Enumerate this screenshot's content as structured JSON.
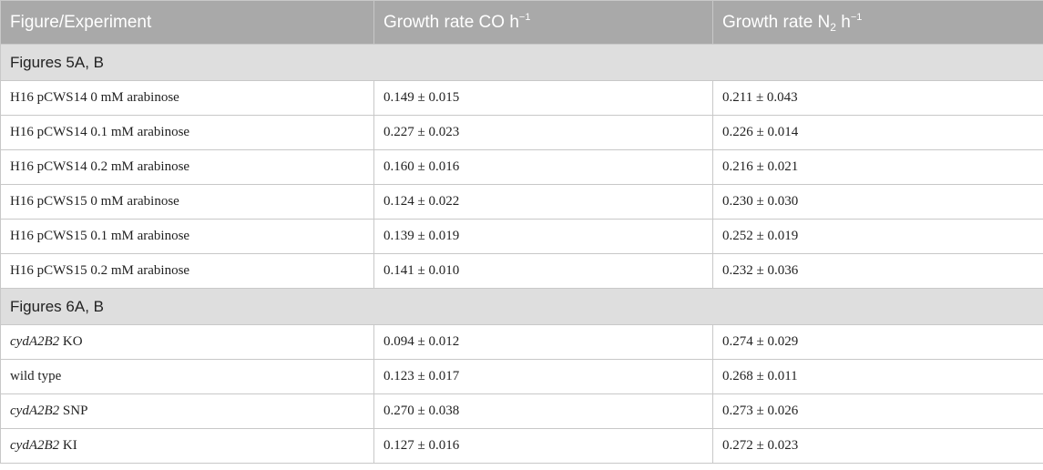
{
  "header": {
    "col1": "Figure/Experiment",
    "col2_prefix": "Growth rate CO h",
    "col2_sup": "−1",
    "col3_prefix": "Growth rate N",
    "col3_sub": "2",
    "col3_mid": " h",
    "col3_sup": "−1"
  },
  "sections": [
    {
      "title": "Figures 5A, B",
      "rows": [
        {
          "italic": "",
          "label": "H16 pCWS14 0 mM arabinose",
          "co": "0.149 ± 0.015",
          "n2": "0.211 ± 0.043"
        },
        {
          "italic": "",
          "label": "H16 pCWS14 0.1 mM arabinose",
          "co": "0.227 ± 0.023",
          "n2": "0.226 ± 0.014"
        },
        {
          "italic": "",
          "label": "H16 pCWS14 0.2 mM arabinose",
          "co": "0.160 ± 0.016",
          "n2": "0.216 ± 0.021"
        },
        {
          "italic": "",
          "label": "H16 pCWS15 0 mM arabinose",
          "co": "0.124 ± 0.022",
          "n2": "0.230 ± 0.030"
        },
        {
          "italic": "",
          "label": "H16 pCWS15 0.1 mM arabinose",
          "co": "0.139 ± 0.019",
          "n2": "0.252 ± 0.019"
        },
        {
          "italic": "",
          "label": "H16 pCWS15 0.2 mM arabinose",
          "co": "0.141 ± 0.010",
          "n2": "0.232 ± 0.036"
        }
      ]
    },
    {
      "title": "Figures 6A, B",
      "rows": [
        {
          "italic": "cydA2B2",
          "label": " KO",
          "co": "0.094 ± 0.012",
          "n2": "0.274 ± 0.029"
        },
        {
          "italic": "",
          "label": "wild type",
          "co": "0.123 ± 0.017",
          "n2": "0.268 ± 0.011"
        },
        {
          "italic": "cydA2B2",
          "label": " SNP",
          "co": "0.270 ± 0.038",
          "n2": "0.273 ± 0.026"
        },
        {
          "italic": "cydA2B2",
          "label": " KI",
          "co": "0.127 ± 0.016",
          "n2": "0.272 ± 0.023"
        }
      ]
    }
  ]
}
